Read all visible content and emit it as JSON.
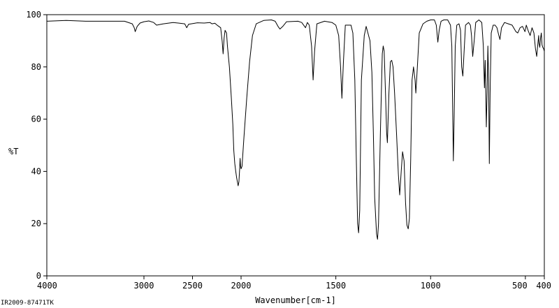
{
  "chart_data": {
    "type": "line",
    "title": "",
    "xlabel": "Wavenumber[cm-1]",
    "ylabel": "%T",
    "xlim": [
      4000,
      400
    ],
    "ylim": [
      0,
      100
    ],
    "x_ticks": [
      4000,
      3000,
      2500,
      2000,
      1500,
      1000,
      500,
      400
    ],
    "x_tick_labels": [
      "4000",
      "3000",
      "2500",
      "2000",
      "1500",
      "1000",
      "500",
      "400"
    ],
    "y_ticks": [
      0,
      20,
      40,
      60,
      80,
      100
    ],
    "y_tick_labels": [
      "0",
      "20",
      "40",
      "60",
      "80",
      "100"
    ],
    "grid": false,
    "series": [
      {
        "points": [
          [
            4000,
            97.5
          ],
          [
            3800,
            97.8
          ],
          [
            3600,
            97.5
          ],
          [
            3400,
            97.5
          ],
          [
            3200,
            97.5
          ],
          [
            3120,
            96.5
          ],
          [
            3100,
            95.0
          ],
          [
            3090,
            93.5
          ],
          [
            3070,
            95.5
          ],
          [
            3040,
            96.8
          ],
          [
            3000,
            97.3
          ],
          [
            2950,
            97.6
          ],
          [
            2900,
            97.0
          ],
          [
            2870,
            96.0
          ],
          [
            2800,
            96.5
          ],
          [
            2700,
            97.0
          ],
          [
            2580,
            96.5
          ],
          [
            2560,
            95.0
          ],
          [
            2540,
            96.3
          ],
          [
            2450,
            96.9
          ],
          [
            2380,
            96.8
          ],
          [
            2320,
            97.0
          ],
          [
            2300,
            96.5
          ],
          [
            2270,
            96.7
          ],
          [
            2240,
            95.8
          ],
          [
            2210,
            95.0
          ],
          [
            2195,
            90.0
          ],
          [
            2185,
            85.0
          ],
          [
            2175,
            91.0
          ],
          [
            2165,
            94.0
          ],
          [
            2150,
            93.0
          ],
          [
            2140,
            88.0
          ],
          [
            2120,
            80.0
          ],
          [
            2100,
            68.0
          ],
          [
            2085,
            58.0
          ],
          [
            2075,
            48.0
          ],
          [
            2065,
            43.0
          ],
          [
            2055,
            40.0
          ],
          [
            2045,
            37.5
          ],
          [
            2035,
            35.5
          ],
          [
            2030,
            34.5
          ],
          [
            2022,
            36.0
          ],
          [
            2015,
            40.5
          ],
          [
            2010,
            45.0
          ],
          [
            2005,
            42.0
          ],
          [
            2000,
            41.0
          ],
          [
            1995,
            42.0
          ],
          [
            1985,
            53.0
          ],
          [
            1970,
            68.0
          ],
          [
            1955,
            82.0
          ],
          [
            1940,
            92.0
          ],
          [
            1920,
            96.5
          ],
          [
            1880,
            97.8
          ],
          [
            1840,
            98.0
          ],
          [
            1820,
            97.5
          ],
          [
            1805,
            95.5
          ],
          [
            1795,
            94.5
          ],
          [
            1780,
            95.5
          ],
          [
            1760,
            97.3
          ],
          [
            1700,
            97.5
          ],
          [
            1680,
            97.0
          ],
          [
            1660,
            95.0
          ],
          [
            1650,
            97.0
          ],
          [
            1640,
            96.0
          ],
          [
            1628,
            88.0
          ],
          [
            1620,
            75.0
          ],
          [
            1612,
            86.0
          ],
          [
            1600,
            96.5
          ],
          [
            1560,
            97.5
          ],
          [
            1520,
            97.0
          ],
          [
            1500,
            96.0
          ],
          [
            1485,
            92.0
          ],
          [
            1475,
            80.0
          ],
          [
            1468,
            68.0
          ],
          [
            1460,
            82.0
          ],
          [
            1450,
            96.0
          ],
          [
            1420,
            96.0
          ],
          [
            1410,
            93.0
          ],
          [
            1400,
            75.0
          ],
          [
            1392,
            45.0
          ],
          [
            1385,
            20.0
          ],
          [
            1380,
            16.5
          ],
          [
            1374,
            25.0
          ],
          [
            1365,
            75.0
          ],
          [
            1350,
            92.0
          ],
          [
            1340,
            95.5
          ],
          [
            1320,
            90.0
          ],
          [
            1310,
            78.0
          ],
          [
            1302,
            55.0
          ],
          [
            1295,
            30.0
          ],
          [
            1285,
            16.0
          ],
          [
            1280,
            14.0
          ],
          [
            1275,
            20.0
          ],
          [
            1265,
            55.0
          ],
          [
            1255,
            85.0
          ],
          [
            1250,
            88.0
          ],
          [
            1245,
            86.0
          ],
          [
            1238,
            70.0
          ],
          [
            1232,
            55.0
          ],
          [
            1228,
            51.0
          ],
          [
            1220,
            70.0
          ],
          [
            1212,
            82.0
          ],
          [
            1205,
            82.5
          ],
          [
            1198,
            80.0
          ],
          [
            1190,
            70.0
          ],
          [
            1180,
            55.0
          ],
          [
            1170,
            39.0
          ],
          [
            1163,
            31.0
          ],
          [
            1155,
            40.0
          ],
          [
            1148,
            47.5
          ],
          [
            1140,
            44.0
          ],
          [
            1132,
            28.0
          ],
          [
            1125,
            19.5
          ],
          [
            1118,
            18.0
          ],
          [
            1112,
            22.0
          ],
          [
            1105,
            45.0
          ],
          [
            1098,
            75.0
          ],
          [
            1090,
            80.0
          ],
          [
            1082,
            75.0
          ],
          [
            1078,
            70.0
          ],
          [
            1070,
            80.0
          ],
          [
            1060,
            93.0
          ],
          [
            1040,
            96.5
          ],
          [
            1020,
            97.5
          ],
          [
            1000,
            98.0
          ],
          [
            980,
            98.0
          ],
          [
            970,
            96.0
          ],
          [
            962,
            89.5
          ],
          [
            955,
            94.0
          ],
          [
            945,
            97.5
          ],
          [
            930,
            98.0
          ],
          [
            910,
            98.0
          ],
          [
            895,
            96.0
          ],
          [
            888,
            88.0
          ],
          [
            883,
            60.0
          ],
          [
            880,
            44.0
          ],
          [
            876,
            60.0
          ],
          [
            870,
            88.0
          ],
          [
            862,
            96.0
          ],
          [
            850,
            96.5
          ],
          [
            842,
            94.0
          ],
          [
            836,
            80.0
          ],
          [
            830,
            76.5
          ],
          [
            824,
            85.0
          ],
          [
            816,
            96.0
          ],
          [
            800,
            97.0
          ],
          [
            790,
            96.0
          ],
          [
            784,
            92.0
          ],
          [
            778,
            84.0
          ],
          [
            770,
            90.0
          ],
          [
            762,
            97.0
          ],
          [
            745,
            98.0
          ],
          [
            730,
            97.0
          ],
          [
            722,
            88.0
          ],
          [
            716,
            72.0
          ],
          [
            712,
            82.5
          ],
          [
            706,
            57.0
          ],
          [
            702,
            70.0
          ],
          [
            698,
            88.0
          ],
          [
            694,
            75.0
          ],
          [
            690,
            43.0
          ],
          [
            686,
            70.0
          ],
          [
            680,
            93.0
          ],
          [
            670,
            96.0
          ],
          [
            660,
            96.0
          ],
          [
            650,
            95.0
          ],
          [
            640,
            92.0
          ],
          [
            634,
            90.5
          ],
          [
            626,
            95.0
          ],
          [
            610,
            97.0
          ],
          [
            590,
            96.5
          ],
          [
            570,
            96.0
          ],
          [
            550,
            93.5
          ],
          [
            540,
            93.0
          ],
          [
            528,
            95.0
          ],
          [
            515,
            95.5
          ],
          [
            502,
            93.5
          ],
          [
            495,
            96.0
          ],
          [
            486,
            94.0
          ],
          [
            475,
            92.0
          ],
          [
            465,
            95.0
          ],
          [
            455,
            93.0
          ],
          [
            447,
            87.0
          ],
          [
            440,
            84.0
          ],
          [
            434,
            89.0
          ],
          [
            430,
            92.0
          ],
          [
            428,
            89.0
          ],
          [
            424,
            87.5
          ],
          [
            420,
            91.0
          ],
          [
            416,
            93.0
          ],
          [
            412,
            88.5
          ],
          [
            408,
            87.5
          ],
          [
            404,
            87.0
          ],
          [
            400,
            86.0
          ]
        ]
      }
    ]
  },
  "footer": {
    "sample_id": "IR2009-87471TK"
  }
}
